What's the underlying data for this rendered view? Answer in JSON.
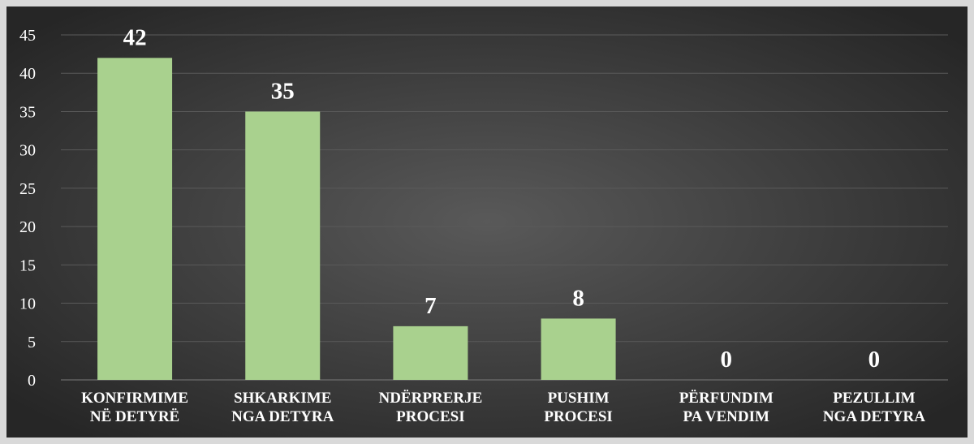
{
  "chart_data": {
    "type": "bar",
    "categories": [
      [
        "KONFIRMIME",
        "NË DETYRË"
      ],
      [
        "SHKARKIME",
        "NGA DETYRA"
      ],
      [
        "NDËRPRERJE",
        "PROCESI"
      ],
      [
        "PUSHIM",
        "PROCESI"
      ],
      [
        "PËRFUNDIM",
        "PA VENDIM"
      ],
      [
        "PEZULLIM",
        "NGA DETYRA"
      ]
    ],
    "values": [
      42,
      35,
      7,
      8,
      0,
      0
    ],
    "ylim": [
      0,
      45
    ],
    "yticks": [
      0,
      5,
      10,
      15,
      20,
      25,
      30,
      35,
      40,
      45
    ],
    "title": "",
    "xlabel": "",
    "ylabel": "",
    "grid": true,
    "legend": "none"
  },
  "colors": {
    "bar": "#a9d18e",
    "background_center": "#595959",
    "background_edge": "#262626",
    "gridline": "#5a5a5a",
    "text": "#ffffff",
    "border": "#d9d9d9"
  }
}
